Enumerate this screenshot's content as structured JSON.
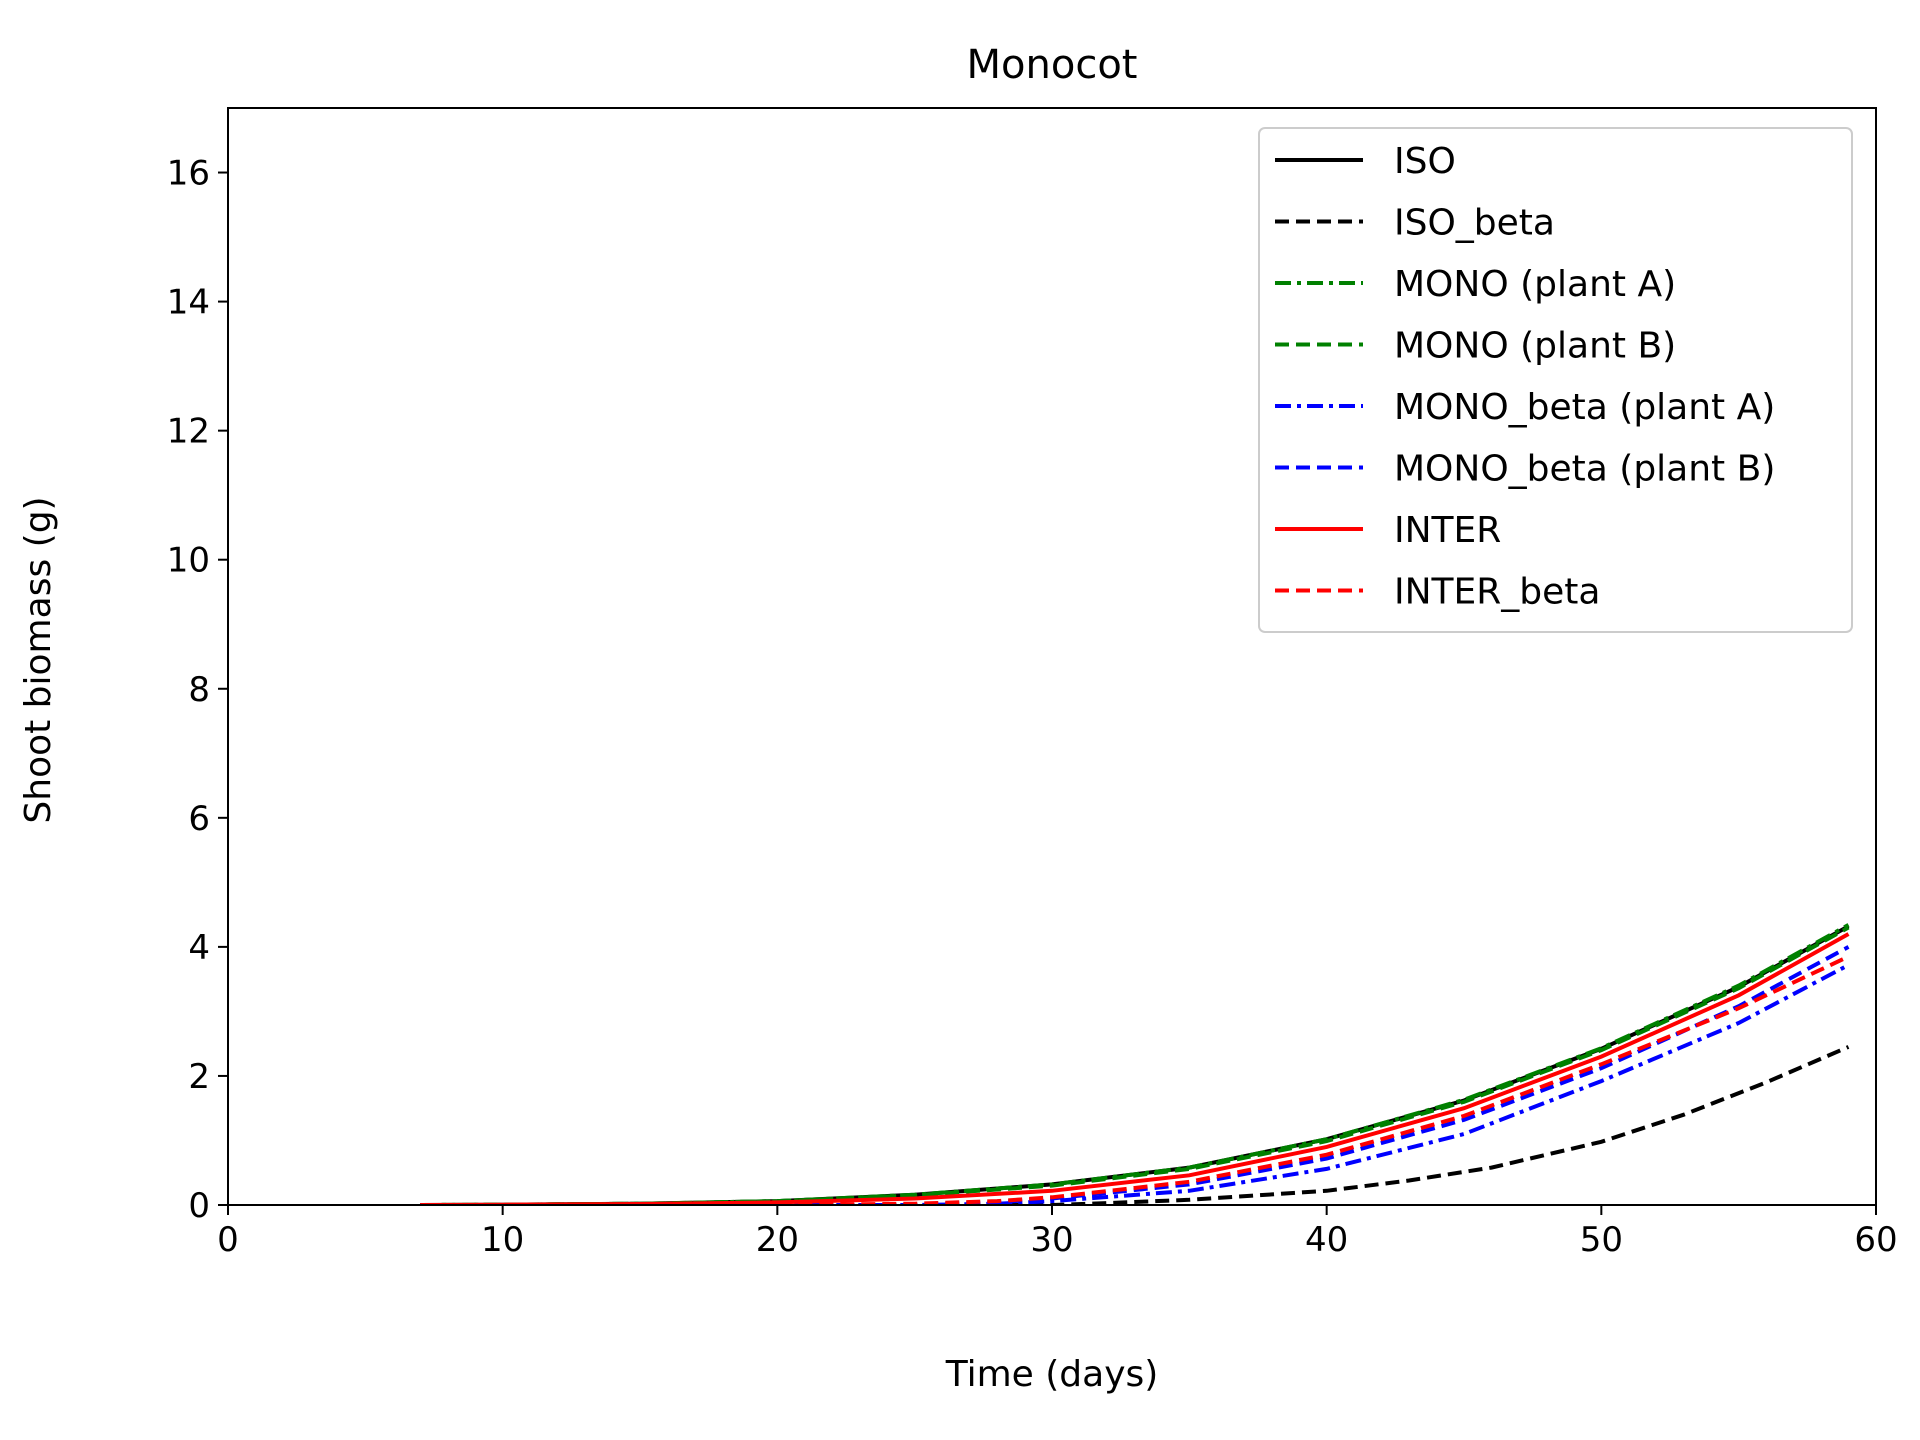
{
  "chart_data": {
    "type": "line",
    "title": "Monocot",
    "xlabel": "Time (days)",
    "ylabel": "Shoot biomass (g)",
    "xlim": [
      0,
      60
    ],
    "ylim": [
      0,
      17
    ],
    "xticks": [
      0,
      10,
      20,
      30,
      40,
      50,
      60
    ],
    "yticks": [
      0,
      2,
      4,
      6,
      8,
      10,
      12,
      14,
      16
    ],
    "grid": false,
    "legend_position": "top-right",
    "series": [
      {
        "name": "ISO",
        "color": "#000000",
        "dash": "solid",
        "x": [
          7,
          10,
          15,
          20,
          25,
          30,
          35,
          40,
          45,
          50,
          55,
          59
        ],
        "y": [
          0,
          0.005,
          0.02,
          0.06,
          0.16,
          0.32,
          0.58,
          1.02,
          1.62,
          2.42,
          3.38,
          4.32
        ]
      },
      {
        "name": "ISO_beta",
        "color": "#000000",
        "dash": "dashed",
        "x": [
          7,
          10,
          15,
          20,
          25,
          30,
          32,
          35,
          40,
          43,
          46,
          50,
          53,
          56,
          59
        ],
        "y": [
          0,
          0,
          0,
          0,
          0,
          0,
          0.03,
          0.08,
          0.22,
          0.38,
          0.58,
          0.98,
          1.4,
          1.9,
          2.45
        ]
      },
      {
        "name": "MONO (plant A)",
        "color": "#008000",
        "dash": "dashdot",
        "x": [
          7,
          10,
          15,
          20,
          25,
          30,
          35,
          40,
          45,
          50,
          55,
          59
        ],
        "y": [
          0,
          0.005,
          0.02,
          0.06,
          0.16,
          0.32,
          0.58,
          1.02,
          1.63,
          2.43,
          3.4,
          4.34
        ]
      },
      {
        "name": "MONO (plant B)",
        "color": "#008000",
        "dash": "dashed",
        "x": [
          7,
          10,
          15,
          20,
          25,
          30,
          35,
          40,
          45,
          50,
          55,
          59
        ],
        "y": [
          0,
          0.005,
          0.02,
          0.06,
          0.15,
          0.3,
          0.56,
          0.99,
          1.6,
          2.4,
          3.36,
          4.3
        ]
      },
      {
        "name": "MONO_beta (plant A)",
        "color": "#0000ff",
        "dash": "dashdot",
        "x": [
          7,
          10,
          15,
          20,
          25,
          28,
          30,
          35,
          40,
          45,
          50,
          55,
          59
        ],
        "y": [
          0,
          0,
          0,
          0,
          0,
          0.02,
          0.06,
          0.22,
          0.56,
          1.1,
          1.92,
          2.82,
          3.72
        ]
      },
      {
        "name": "MONO_beta (plant B)",
        "color": "#0000ff",
        "dash": "dashed",
        "x": [
          7,
          10,
          15,
          20,
          25,
          28,
          30,
          35,
          40,
          45,
          50,
          55,
          59
        ],
        "y": [
          0,
          0,
          0,
          0,
          0,
          0.04,
          0.1,
          0.32,
          0.72,
          1.32,
          2.12,
          3.08,
          4.0
        ]
      },
      {
        "name": "INTER",
        "color": "#ff0000",
        "dash": "solid",
        "x": [
          7,
          10,
          15,
          20,
          25,
          30,
          35,
          40,
          45,
          50,
          55,
          59
        ],
        "y": [
          0,
          0.005,
          0.015,
          0.04,
          0.1,
          0.22,
          0.46,
          0.9,
          1.5,
          2.3,
          3.25,
          4.2
        ]
      },
      {
        "name": "INTER_beta",
        "color": "#ff0000",
        "dash": "dashed",
        "x": [
          7,
          10,
          15,
          20,
          25,
          28,
          30,
          35,
          40,
          45,
          50,
          55,
          59
        ],
        "y": [
          0,
          0,
          0,
          0,
          0.02,
          0.06,
          0.12,
          0.36,
          0.78,
          1.38,
          2.18,
          3.05,
          3.85
        ]
      }
    ]
  }
}
